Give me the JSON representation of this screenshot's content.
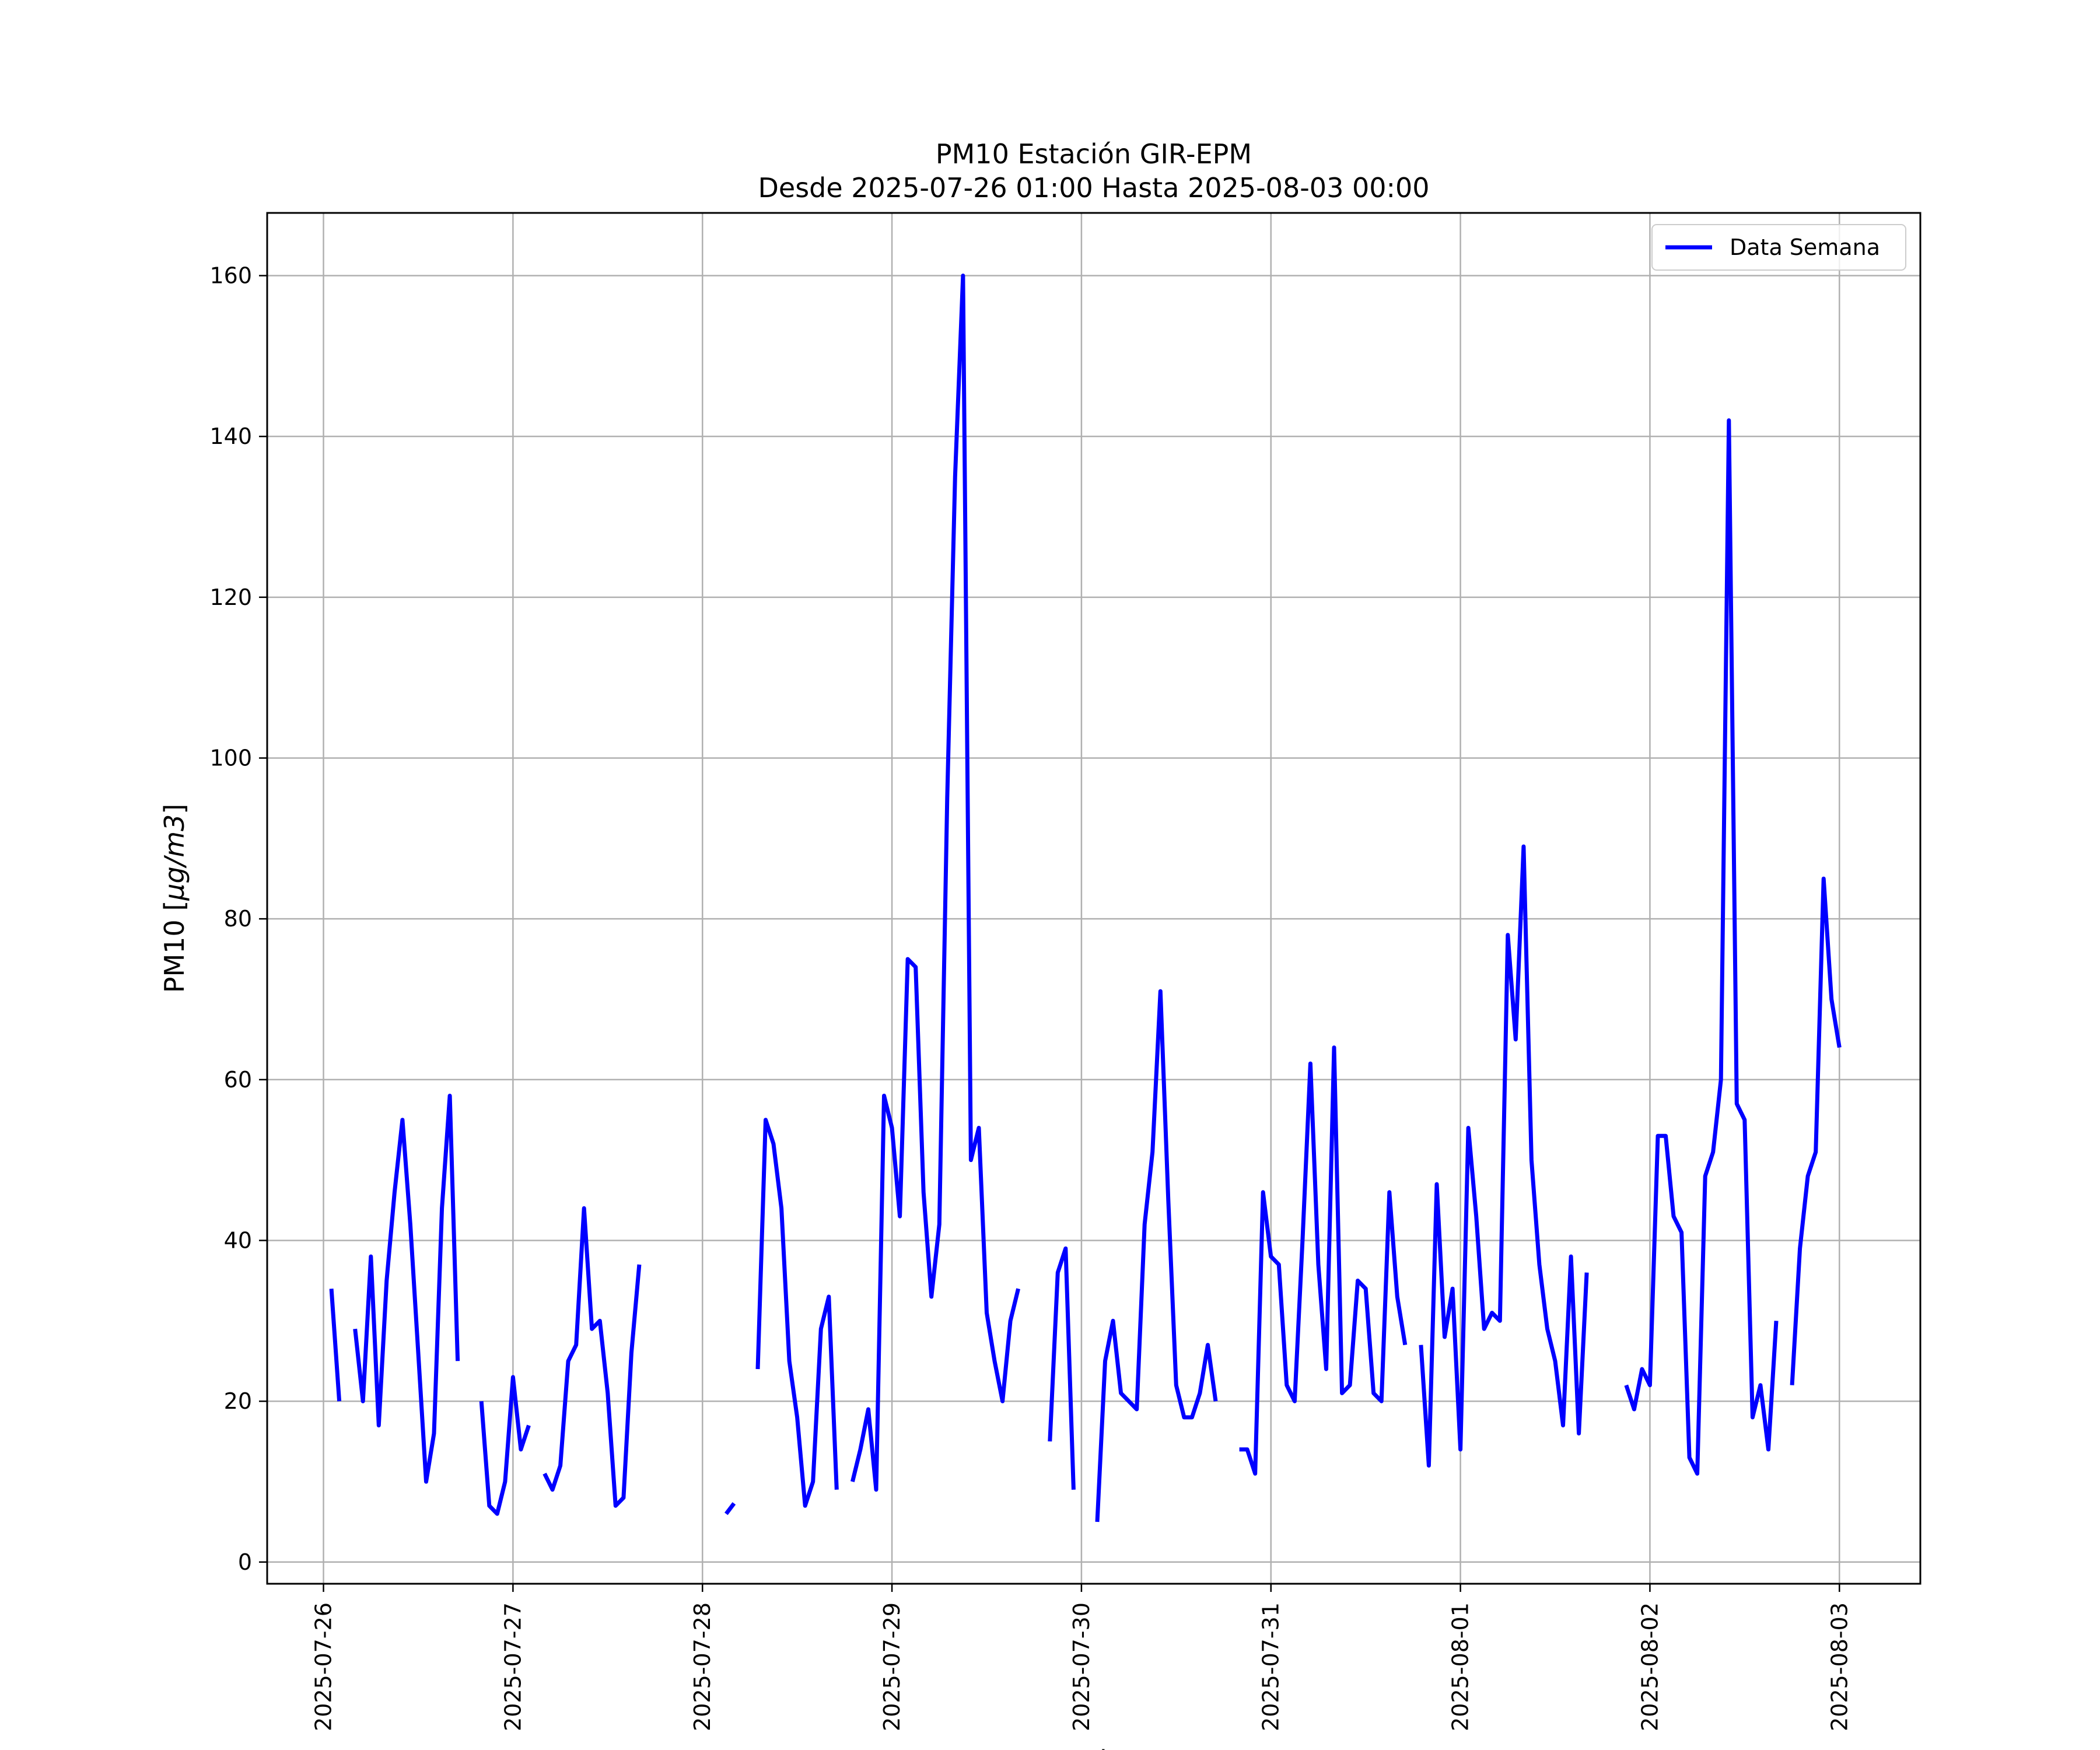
{
  "chart_data": {
    "type": "line",
    "title": "PM10 Estación GIR-EPM",
    "subtitle": "Desde 2025-07-26 01:00 Hasta 2025-08-03 00:00",
    "xlabel": "Fecha",
    "ylabel_prefix": "PM10 [",
    "ylabel_unit": "μg/m3",
    "ylabel_suffix": "]",
    "x_ticks": [
      "2025-07-26",
      "2025-07-27",
      "2025-07-28",
      "2025-07-29",
      "2025-07-30",
      "2025-07-31",
      "2025-08-01",
      "2025-08-02",
      "2025-08-03"
    ],
    "y_ticks": [
      0,
      20,
      40,
      60,
      80,
      100,
      120,
      140,
      160
    ],
    "xlim": [
      "2025-07-25 16:52",
      "2025-08-03 10:15"
    ],
    "ylim": [
      -2.7,
      167.8
    ],
    "grid": true,
    "legend_position": "top-right",
    "colors": {
      "series": "#0000ff",
      "grid": "#b0b0b0",
      "axes": "#000000"
    },
    "series": [
      {
        "name": "Data Semana",
        "segments": [
          [
            [
              "2025-07-26 01:00",
              34
            ],
            [
              "2025-07-26 02:00",
              20
            ]
          ],
          [
            [
              "2025-07-26 04:00",
              29
            ],
            [
              "2025-07-26 05:00",
              20
            ],
            [
              "2025-07-26 06:00",
              38
            ],
            [
              "2025-07-26 07:00",
              17
            ],
            [
              "2025-07-26 08:00",
              35
            ],
            [
              "2025-07-26 09:00",
              46
            ],
            [
              "2025-07-26 10:00",
              55
            ],
            [
              "2025-07-26 11:00",
              42
            ],
            [
              "2025-07-26 12:00",
              26
            ],
            [
              "2025-07-26 13:00",
              10
            ],
            [
              "2025-07-26 14:00",
              16
            ],
            [
              "2025-07-26 15:00",
              44
            ],
            [
              "2025-07-26 16:00",
              58
            ],
            [
              "2025-07-26 17:00",
              25
            ]
          ],
          [
            [
              "2025-07-26 20:00",
              20
            ],
            [
              "2025-07-26 21:00",
              7
            ],
            [
              "2025-07-26 22:00",
              6
            ],
            [
              "2025-07-26 23:00",
              10
            ],
            [
              "2025-07-27 00:00",
              23
            ],
            [
              "2025-07-27 01:00",
              14
            ],
            [
              "2025-07-27 02:00",
              17
            ]
          ],
          [
            [
              "2025-07-27 04:00",
              11
            ],
            [
              "2025-07-27 05:00",
              9
            ],
            [
              "2025-07-27 06:00",
              12
            ],
            [
              "2025-07-27 07:00",
              25
            ],
            [
              "2025-07-27 08:00",
              27
            ],
            [
              "2025-07-27 09:00",
              44
            ],
            [
              "2025-07-27 10:00",
              29
            ],
            [
              "2025-07-27 11:00",
              30
            ],
            [
              "2025-07-27 12:00",
              21
            ],
            [
              "2025-07-27 13:00",
              7
            ],
            [
              "2025-07-27 14:00",
              8
            ],
            [
              "2025-07-27 15:00",
              26
            ],
            [
              "2025-07-27 16:00",
              37
            ]
          ],
          [
            [
              "2025-07-28 03:00",
              6
            ],
            [
              "2025-07-28 04:00",
              7.3
            ]
          ],
          [
            [
              "2025-07-28 07:00",
              24
            ],
            [
              "2025-07-28 08:00",
              55
            ],
            [
              "2025-07-28 09:00",
              52
            ],
            [
              "2025-07-28 10:00",
              44
            ],
            [
              "2025-07-28 11:00",
              25
            ],
            [
              "2025-07-28 12:00",
              18
            ],
            [
              "2025-07-28 13:00",
              7
            ],
            [
              "2025-07-28 14:00",
              10
            ],
            [
              "2025-07-28 15:00",
              29
            ],
            [
              "2025-07-28 16:00",
              33
            ],
            [
              "2025-07-28 17:00",
              9
            ]
          ],
          [
            [
              "2025-07-28 19:00",
              10
            ],
            [
              "2025-07-28 20:00",
              14
            ],
            [
              "2025-07-28 21:00",
              19
            ],
            [
              "2025-07-28 22:00",
              9
            ],
            [
              "2025-07-28 23:00",
              58
            ],
            [
              "2025-07-29 00:00",
              54
            ],
            [
              "2025-07-29 01:00",
              43
            ],
            [
              "2025-07-29 02:00",
              75
            ],
            [
              "2025-07-29 03:00",
              74
            ],
            [
              "2025-07-29 04:00",
              46
            ],
            [
              "2025-07-29 05:00",
              33
            ],
            [
              "2025-07-29 06:00",
              42
            ],
            [
              "2025-07-29 07:00",
              95
            ],
            [
              "2025-07-29 08:00",
              135
            ],
            [
              "2025-07-29 09:00",
              160
            ],
            [
              "2025-07-29 10:00",
              50
            ],
            [
              "2025-07-29 11:00",
              54
            ],
            [
              "2025-07-29 12:00",
              31
            ],
            [
              "2025-07-29 13:00",
              25
            ],
            [
              "2025-07-29 14:00",
              20
            ],
            [
              "2025-07-29 15:00",
              30
            ],
            [
              "2025-07-29 16:00",
              34
            ]
          ],
          [
            [
              "2025-07-29 20:00",
              15
            ],
            [
              "2025-07-29 21:00",
              36
            ],
            [
              "2025-07-29 22:00",
              39
            ],
            [
              "2025-07-29 23:00",
              9
            ]
          ],
          [
            [
              "2025-07-30 02:00",
              5
            ],
            [
              "2025-07-30 03:00",
              25
            ],
            [
              "2025-07-30 04:00",
              30
            ],
            [
              "2025-07-30 05:00",
              21
            ],
            [
              "2025-07-30 06:00",
              20
            ],
            [
              "2025-07-30 07:00",
              19
            ],
            [
              "2025-07-30 08:00",
              42
            ],
            [
              "2025-07-30 09:00",
              51
            ],
            [
              "2025-07-30 10:00",
              71
            ],
            [
              "2025-07-30 11:00",
              45
            ],
            [
              "2025-07-30 12:00",
              22
            ],
            [
              "2025-07-30 13:00",
              18
            ],
            [
              "2025-07-30 14:00",
              18
            ],
            [
              "2025-07-30 15:00",
              21
            ],
            [
              "2025-07-30 16:00",
              27
            ],
            [
              "2025-07-30 17:00",
              20
            ]
          ],
          [
            [
              "2025-07-30 20:00",
              14
            ],
            [
              "2025-07-30 21:00",
              14
            ],
            [
              "2025-07-30 22:00",
              11
            ],
            [
              "2025-07-30 23:00",
              46
            ],
            [
              "2025-07-31 00:00",
              38
            ],
            [
              "2025-07-31 01:00",
              37
            ],
            [
              "2025-07-31 02:00",
              22
            ],
            [
              "2025-07-31 03:00",
              20
            ],
            [
              "2025-07-31 04:00",
              40
            ],
            [
              "2025-07-31 05:00",
              62
            ],
            [
              "2025-07-31 06:00",
              37
            ],
            [
              "2025-07-31 07:00",
              24
            ],
            [
              "2025-07-31 08:00",
              64
            ],
            [
              "2025-07-31 09:00",
              21
            ],
            [
              "2025-07-31 10:00",
              22
            ],
            [
              "2025-07-31 11:00",
              35
            ],
            [
              "2025-07-31 12:00",
              34
            ],
            [
              "2025-07-31 13:00",
              21
            ],
            [
              "2025-07-31 14:00",
              20
            ],
            [
              "2025-07-31 15:00",
              46
            ],
            [
              "2025-07-31 16:00",
              33
            ],
            [
              "2025-07-31 17:00",
              27
            ]
          ],
          [
            [
              "2025-07-31 19:00",
              27
            ],
            [
              "2025-07-31 20:00",
              12
            ],
            [
              "2025-07-31 21:00",
              47
            ],
            [
              "2025-07-31 22:00",
              28
            ],
            [
              "2025-07-31 23:00",
              34
            ],
            [
              "2025-08-01 00:00",
              14
            ],
            [
              "2025-08-01 01:00",
              54
            ],
            [
              "2025-08-01 02:00",
              43
            ],
            [
              "2025-08-01 03:00",
              29
            ],
            [
              "2025-08-01 04:00",
              31
            ],
            [
              "2025-08-01 05:00",
              30
            ],
            [
              "2025-08-01 06:00",
              78
            ],
            [
              "2025-08-01 07:00",
              65
            ],
            [
              "2025-08-01 08:00",
              89
            ],
            [
              "2025-08-01 09:00",
              50
            ],
            [
              "2025-08-01 10:00",
              37
            ],
            [
              "2025-08-01 11:00",
              29
            ],
            [
              "2025-08-01 12:00",
              25
            ],
            [
              "2025-08-01 13:00",
              17
            ],
            [
              "2025-08-01 14:00",
              38
            ],
            [
              "2025-08-01 15:00",
              16
            ],
            [
              "2025-08-01 16:00",
              36
            ]
          ],
          [
            [
              "2025-08-01 21:00",
              22
            ],
            [
              "2025-08-01 22:00",
              19
            ],
            [
              "2025-08-01 23:00",
              24
            ],
            [
              "2025-08-02 00:00",
              22
            ],
            [
              "2025-08-02 01:00",
              53
            ],
            [
              "2025-08-02 02:00",
              53
            ],
            [
              "2025-08-02 03:00",
              43
            ],
            [
              "2025-08-02 04:00",
              41
            ],
            [
              "2025-08-02 05:00",
              13
            ],
            [
              "2025-08-02 06:00",
              11
            ],
            [
              "2025-08-02 07:00",
              48
            ],
            [
              "2025-08-02 08:00",
              51
            ],
            [
              "2025-08-02 09:00",
              60
            ],
            [
              "2025-08-02 10:00",
              142
            ],
            [
              "2025-08-02 11:00",
              57
            ],
            [
              "2025-08-02 12:00",
              55
            ],
            [
              "2025-08-02 13:00",
              18
            ],
            [
              "2025-08-02 14:00",
              22
            ],
            [
              "2025-08-02 15:00",
              14
            ],
            [
              "2025-08-02 16:00",
              30
            ]
          ],
          [
            [
              "2025-08-02 18:00",
              22
            ],
            [
              "2025-08-02 19:00",
              39
            ],
            [
              "2025-08-02 20:00",
              48
            ],
            [
              "2025-08-02 21:00",
              51
            ],
            [
              "2025-08-02 22:00",
              85
            ],
            [
              "2025-08-02 23:00",
              70
            ],
            [
              "2025-08-03 00:00",
              64
            ]
          ]
        ]
      }
    ]
  }
}
